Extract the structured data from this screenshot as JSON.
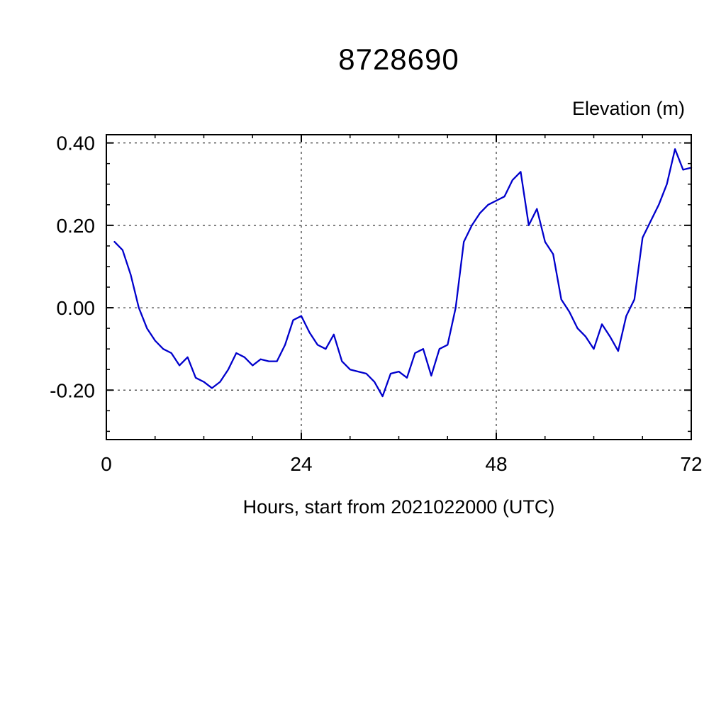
{
  "chart_data": {
    "type": "line",
    "title": "8728690",
    "ylabel": "Elevation (m)",
    "xlabel": "Hours, start from 2021022000 (UTC)",
    "series_name": "elevation",
    "x": [
      1,
      2,
      3,
      4,
      5,
      6,
      7,
      8,
      9,
      10,
      11,
      12,
      13,
      14,
      15,
      16,
      17,
      18,
      19,
      20,
      21,
      22,
      23,
      24,
      25,
      26,
      27,
      28,
      29,
      30,
      31,
      32,
      33,
      34,
      35,
      36,
      37,
      38,
      39,
      40,
      41,
      42,
      43,
      44,
      45,
      46,
      47,
      48,
      49,
      50,
      51,
      52,
      53,
      54,
      55,
      56,
      57,
      58,
      59,
      60,
      61,
      62,
      63,
      64,
      65,
      66,
      67,
      68,
      69,
      70,
      71,
      72
    ],
    "y": [
      0.16,
      0.14,
      0.08,
      0.0,
      -0.05,
      -0.08,
      -0.1,
      -0.11,
      -0.14,
      -0.12,
      -0.17,
      -0.18,
      -0.195,
      -0.18,
      -0.15,
      -0.11,
      -0.12,
      -0.14,
      -0.125,
      -0.13,
      -0.13,
      -0.09,
      -0.03,
      -0.02,
      -0.06,
      -0.09,
      -0.1,
      -0.065,
      -0.13,
      -0.15,
      -0.155,
      -0.16,
      -0.18,
      -0.215,
      -0.16,
      -0.155,
      -0.17,
      -0.11,
      -0.1,
      -0.165,
      -0.1,
      -0.09,
      0.0,
      0.16,
      0.2,
      0.23,
      0.25,
      0.26,
      0.27,
      0.31,
      0.33,
      0.2,
      0.24,
      0.16,
      0.13,
      0.02,
      -0.01,
      -0.05,
      -0.07,
      -0.1,
      -0.04,
      -0.07,
      -0.105,
      -0.02,
      0.02,
      0.17,
      0.21,
      0.25,
      0.3,
      0.385,
      0.335,
      0.34
    ],
    "xlim": [
      0,
      72
    ],
    "ylim": [
      -0.32,
      0.42
    ],
    "xticks": [
      0,
      24,
      48,
      72
    ],
    "yticks": [
      -0.2,
      0.0,
      0.2,
      0.4
    ],
    "x_minor_step": 6,
    "y_minor_step": 0.05,
    "grid": "dashed",
    "legend": "none",
    "line_color": "#0000cc",
    "axis_color": "#000000",
    "grid_color": "#333333"
  }
}
